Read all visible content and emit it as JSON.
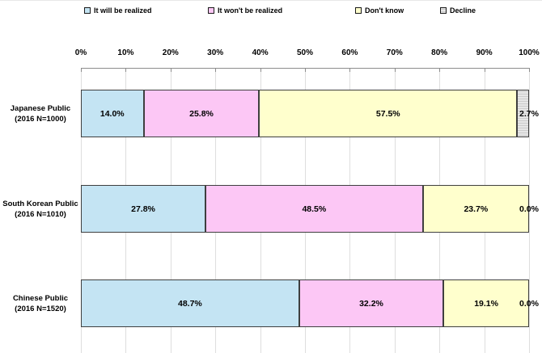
{
  "chart_data": {
    "type": "bar",
    "stacked": true,
    "orientation": "horizontal",
    "title": "",
    "xlabel": "",
    "ylabel": "",
    "xlim": [
      0,
      100
    ],
    "grid": true,
    "legend_position": "top",
    "x_ticks": [
      "0%",
      "10%",
      "20%",
      "30%",
      "40%",
      "50%",
      "60%",
      "70%",
      "80%",
      "90%",
      "100%"
    ],
    "x_tick_values": [
      0,
      10,
      20,
      30,
      40,
      50,
      60,
      70,
      80,
      90,
      100
    ],
    "categories": [
      {
        "line1": "Japanese Public",
        "line2": "(2016  N=1000)"
      },
      {
        "line1": "South Korean Public",
        "line2": "(2016  N=1010)"
      },
      {
        "line1": "Chinese Public",
        "line2": "(2016  N=1520)"
      }
    ],
    "series": [
      {
        "name": "It will be realized",
        "color": "#C4E4F3",
        "pattern": "solid",
        "values": [
          14.0,
          27.8,
          48.7
        ],
        "labels": [
          "14.0%",
          "27.8%",
          "48.7%"
        ]
      },
      {
        "name": "It won't be realized",
        "color": "#FCC7F5",
        "pattern": "solid",
        "values": [
          25.8,
          48.5,
          32.2
        ],
        "labels": [
          "25.8%",
          "48.5%",
          "32.2%"
        ]
      },
      {
        "name": "Don't know",
        "color": "#FFFFCD",
        "pattern": "solid",
        "values": [
          57.5,
          23.7,
          19.1
        ],
        "labels": [
          "57.5%",
          "23.7%",
          "19.1%"
        ]
      },
      {
        "name": "Decline",
        "color": "#FFFFFF",
        "pattern": "dots",
        "values": [
          2.7,
          0.0,
          0.0
        ],
        "labels": [
          "2.7%",
          "0.0%",
          "0.0%"
        ],
        "label_at_edge": true
      }
    ],
    "colors": {
      "segment_border": "#3f3f3f",
      "gridline": "#dedede",
      "axis_line": "#8c8c8c",
      "text": "#000000",
      "background": "#ffffff"
    }
  }
}
